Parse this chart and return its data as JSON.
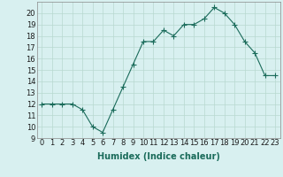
{
  "x": [
    0,
    1,
    2,
    3,
    4,
    5,
    6,
    7,
    8,
    9,
    10,
    11,
    12,
    13,
    14,
    15,
    16,
    17,
    18,
    19,
    20,
    21,
    22,
    23
  ],
  "y": [
    12,
    12,
    12,
    12,
    11.5,
    10,
    9.5,
    11.5,
    13.5,
    15.5,
    17.5,
    17.5,
    18.5,
    18,
    19,
    19,
    19.5,
    20.5,
    20,
    19,
    17.5,
    16.5,
    14.5,
    14.5
  ],
  "line_color": "#1a6b5a",
  "bg_color": "#d8f0f0",
  "grid_color": "#b8d8d0",
  "xlabel": "Humidex (Indice chaleur)",
  "ylim": [
    9,
    21
  ],
  "xlim": [
    -0.5,
    23.5
  ],
  "yticks": [
    9,
    10,
    11,
    12,
    13,
    14,
    15,
    16,
    17,
    18,
    19,
    20
  ],
  "xticks": [
    0,
    1,
    2,
    3,
    4,
    5,
    6,
    7,
    8,
    9,
    10,
    11,
    12,
    13,
    14,
    15,
    16,
    17,
    18,
    19,
    20,
    21,
    22,
    23
  ],
  "marker": "+",
  "markersize": 4,
  "linewidth": 0.8,
  "xlabel_fontsize": 7,
  "tick_fontsize": 6
}
